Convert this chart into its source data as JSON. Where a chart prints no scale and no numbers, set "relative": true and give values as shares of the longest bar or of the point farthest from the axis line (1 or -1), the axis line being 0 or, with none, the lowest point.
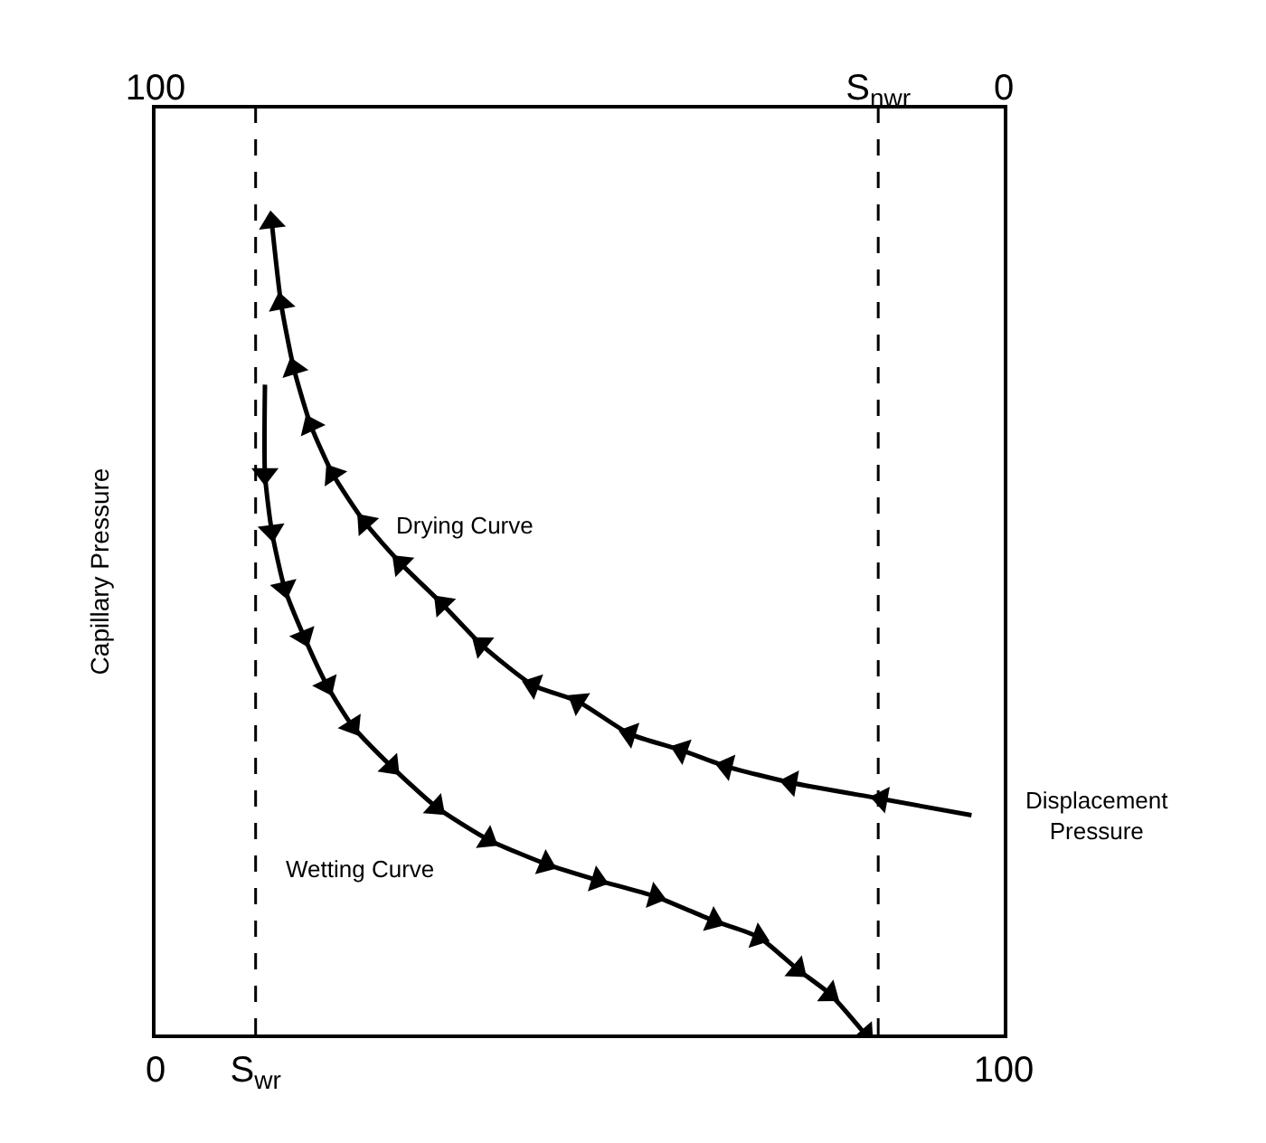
{
  "chart_data": {
    "type": "line",
    "relative": true,
    "ylabel": "Capillary Pressure",
    "xlim": [
      0,
      100
    ],
    "xticks": [
      0,
      {
        "value": 11.8,
        "label": "S$_{wr}$"
      },
      100
    ],
    "x2lim": [
      100,
      0
    ],
    "x2ticks": [
      100,
      {
        "value": 14.8,
        "label": "S$_{nwr}$"
      },
      0
    ],
    "series": [
      {
        "color": "#000000",
        "x": [
          96.2,
          85.6,
          74.9,
          67.3,
          62.0,
          55.9,
          49.8,
          44.5,
          38.4,
          33.8,
          28.9,
          24.7,
          20.9,
          18.3,
          16.3,
          14.8,
          13.7
        ],
        "values": [
          0.27,
          0.29,
          0.31,
          0.33,
          0.35,
          0.37,
          0.41,
          0.43,
          0.48,
          0.53,
          0.58,
          0.63,
          0.69,
          0.75,
          0.82,
          0.9,
          1.0
        ]
      },
      {
        "color": "#000000",
        "x": [
          12.9,
          12.9,
          13.7,
          15.2,
          17.5,
          20.2,
          23.2,
          27.8,
          33.1,
          39.2,
          46.0,
          52.1,
          58.9,
          65.8,
          71.1,
          75.7,
          79.5,
          83.7
        ],
        "values": [
          0.8,
          0.69,
          0.62,
          0.55,
          0.49,
          0.43,
          0.38,
          0.33,
          0.28,
          0.24,
          0.21,
          0.19,
          0.17,
          0.14,
          0.12,
          0.08,
          0.05,
          0
        ]
      }
    ],
    "ref_lines": [
      {
        "axis": "x",
        "value": 11.8,
        "color": "#000000",
        "line_style": "dashed"
      },
      {
        "axis": "x",
        "value": 85.2,
        "color": "#000000",
        "line_style": "dashed"
      }
    ],
    "annotations": [
      "Drying Curve",
      "Wetting Curve",
      {
        "text": "Displacement Pressure",
        "x": 96.2,
        "y": 0.27
      }
    ],
    "marker": "triangle",
    "line_style": "solid",
    "grid": false
  }
}
